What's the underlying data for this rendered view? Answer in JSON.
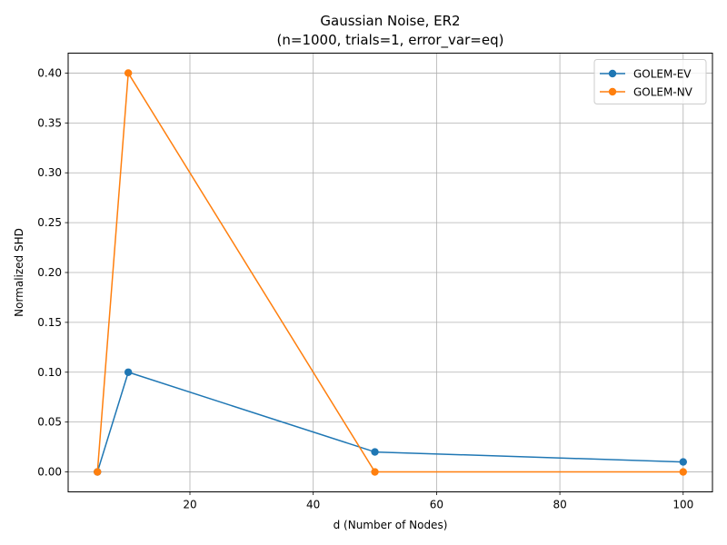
{
  "chart_data": {
    "type": "line",
    "title": "Gaussian Noise, ER2",
    "subtitle": "(n=1000, trials=1, error_var=eq)",
    "xlabel": "d (Number of Nodes)",
    "ylabel": "Normalized SHD",
    "xlim": [
      0.25,
      104.75
    ],
    "ylim": [
      -0.02,
      0.42
    ],
    "xticks": [
      20,
      40,
      60,
      80,
      100
    ],
    "yticks": [
      0.0,
      0.05,
      0.1,
      0.15,
      0.2,
      0.25,
      0.3,
      0.35,
      0.4
    ],
    "ytick_labels": [
      "0.00",
      "0.05",
      "0.10",
      "0.15",
      "0.20",
      "0.25",
      "0.30",
      "0.35",
      "0.40"
    ],
    "grid": true,
    "legend_position": "top-right",
    "x": [
      5,
      10,
      50,
      100
    ],
    "series": [
      {
        "name": "GOLEM-EV",
        "color": "#1f77b4",
        "values": [
          0.0,
          0.1,
          0.02,
          0.01
        ]
      },
      {
        "name": "GOLEM-NV",
        "color": "#ff7f0e",
        "values": [
          0.0,
          0.4,
          0.0,
          0.0
        ]
      }
    ]
  }
}
